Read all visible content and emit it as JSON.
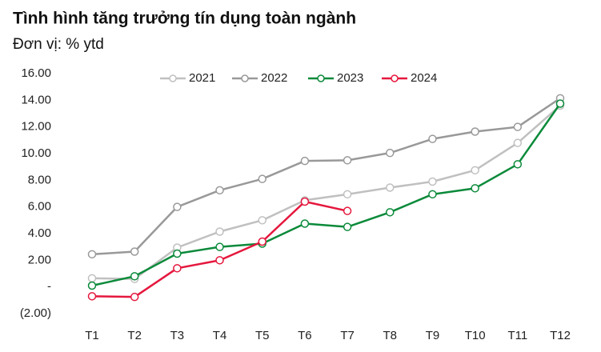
{
  "chart_data": {
    "type": "line",
    "title": "Tình hình tăng trưởng tín dụng toàn ngành",
    "subtitle": "Đơn vị: % ytd",
    "categories": [
      "T1",
      "T2",
      "T3",
      "T4",
      "T5",
      "T6",
      "T7",
      "T8",
      "T9",
      "T10",
      "T11",
      "T12"
    ],
    "series": [
      {
        "name": "2021",
        "color": "#c0c0c0",
        "values": [
          0.65,
          0.6,
          2.95,
          4.15,
          5.0,
          6.5,
          6.95,
          7.45,
          7.9,
          8.75,
          10.8,
          13.6
        ]
      },
      {
        "name": "2022",
        "color": "#999999",
        "values": [
          2.45,
          2.65,
          6.0,
          7.25,
          8.1,
          9.45,
          9.5,
          10.05,
          11.1,
          11.65,
          12.0,
          14.15
        ]
      },
      {
        "name": "2023",
        "color": "#0b8a3a",
        "values": [
          0.1,
          0.8,
          2.5,
          3.0,
          3.25,
          4.75,
          4.5,
          5.6,
          6.95,
          7.4,
          9.2,
          13.75
        ]
      },
      {
        "name": "2024",
        "color": "#e5173d",
        "values": [
          -0.7,
          -0.75,
          1.4,
          2.0,
          3.4,
          6.4,
          5.7,
          null,
          null,
          null,
          null,
          null
        ]
      }
    ],
    "ylim": [
      -2,
      16
    ],
    "yticks": [
      {
        "value": -2,
        "label": "(2.00)"
      },
      {
        "value": 0,
        "label": "-"
      },
      {
        "value": 2,
        "label": "2.00"
      },
      {
        "value": 4,
        "label": "4.00"
      },
      {
        "value": 6,
        "label": "6.00"
      },
      {
        "value": 8,
        "label": "8.00"
      },
      {
        "value": 10,
        "label": "10.00"
      },
      {
        "value": 12,
        "label": "12.00"
      },
      {
        "value": 14,
        "label": "14.00"
      },
      {
        "value": 16,
        "label": "16.00"
      }
    ],
    "legend": "top"
  }
}
